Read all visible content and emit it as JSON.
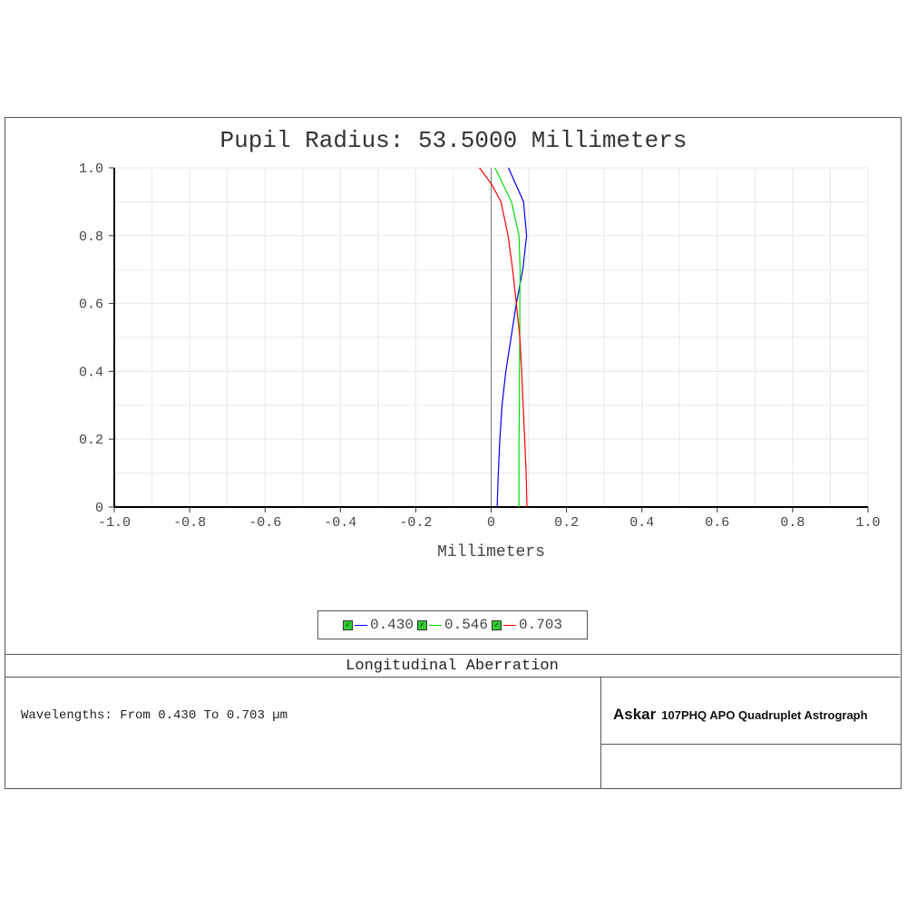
{
  "chart_data": {
    "type": "line",
    "title": "Pupil Radius: 53.5000 Millimeters",
    "xlabel": "Millimeters",
    "ylabel": "",
    "xlim": [
      -1.0,
      1.0
    ],
    "ylim": [
      0,
      1.0
    ],
    "xticks": [
      "-1.0",
      "-0.8",
      "-0.6",
      "-0.4",
      "-0.2",
      "0",
      "0.2",
      "0.4",
      "0.6",
      "0.8",
      "1.0"
    ],
    "yticks": [
      "0",
      "0.2",
      "0.4",
      "0.6",
      "0.8",
      "1.0"
    ],
    "grid": true,
    "legend_position": "bottom",
    "series": [
      {
        "name": "0.430",
        "color": "#0000ff",
        "y": [
          0,
          0.1,
          0.2,
          0.3,
          0.4,
          0.5,
          0.6,
          0.7,
          0.8,
          0.9,
          1.0
        ],
        "x": [
          0.016,
          0.019,
          0.023,
          0.029,
          0.039,
          0.053,
          0.067,
          0.084,
          0.094,
          0.086,
          0.046
        ]
      },
      {
        "name": "0.546",
        "color": "#00dd00",
        "y": [
          0,
          0.1,
          0.2,
          0.3,
          0.4,
          0.5,
          0.6,
          0.7,
          0.8,
          0.9,
          1.0
        ],
        "x": [
          0.074,
          0.074,
          0.074,
          0.075,
          0.075,
          0.076,
          0.076,
          0.077,
          0.074,
          0.054,
          0.01
        ]
      },
      {
        "name": "0.703",
        "color": "#ff0000",
        "y": [
          0,
          0.1,
          0.2,
          0.3,
          0.4,
          0.5,
          0.6,
          0.7,
          0.8,
          0.9,
          0.95,
          1.0
        ],
        "x": [
          0.095,
          0.093,
          0.089,
          0.085,
          0.081,
          0.076,
          0.067,
          0.057,
          0.045,
          0.026,
          0.002,
          -0.031
        ]
      }
    ]
  },
  "footer": {
    "plot_name": "Longitudinal Aberration",
    "info": "Wavelengths: From 0.430 To 0.703 µm",
    "brand": "Askar",
    "product": "107PHQ APO Quadruplet Astrograph"
  }
}
